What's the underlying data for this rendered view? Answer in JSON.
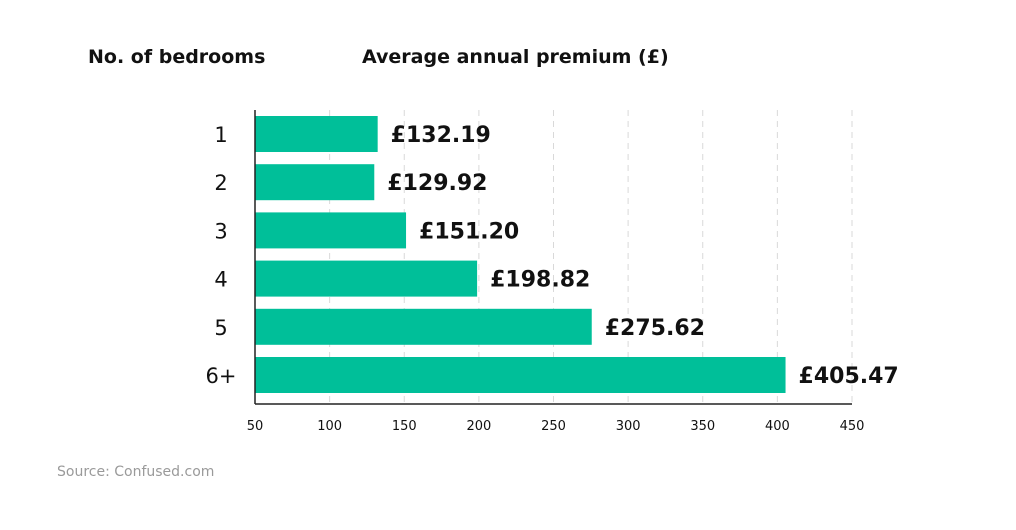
{
  "headers": {
    "left": "No. of bedrooms",
    "right": "Average annual premium (£)"
  },
  "source": "Source: Confused.com",
  "colors": {
    "bar": "#00BF99",
    "axis": "#222222",
    "grid": "#d9d9d9",
    "text": "#111111"
  },
  "chart_data": {
    "type": "bar",
    "orientation": "horizontal",
    "categories": [
      "1",
      "2",
      "3",
      "4",
      "5",
      "6+"
    ],
    "values": [
      132.19,
      129.92,
      151.2,
      198.82,
      275.62,
      405.47
    ],
    "value_labels": [
      "£132.19",
      "£129.92",
      "£151.20",
      "£198.82",
      "£275.62",
      "£405.47"
    ],
    "xlim": [
      50,
      450
    ],
    "xticks": [
      50,
      100,
      150,
      200,
      250,
      300,
      350,
      400,
      450
    ],
    "grid": "vertical dashed"
  }
}
